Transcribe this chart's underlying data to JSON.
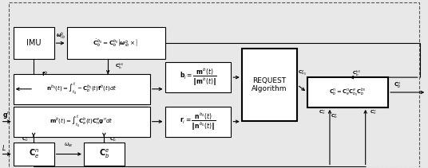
{
  "figsize": [
    5.36,
    2.11
  ],
  "dpi": 100,
  "bg_color": "#e8e8e8",
  "notes": "All coordinates in axes fraction 0-1. Blocks: [x_left, y_bottom, width, height]",
  "blocks": {
    "IMU": [
      0.03,
      0.65,
      0.095,
      0.19
    ],
    "dotCb": [
      0.155,
      0.65,
      0.23,
      0.19
    ],
    "nbt": [
      0.03,
      0.38,
      0.32,
      0.18
    ],
    "bi": [
      0.385,
      0.45,
      0.155,
      0.18
    ],
    "REQUEST": [
      0.565,
      0.28,
      0.13,
      0.43
    ],
    "CbFinal": [
      0.718,
      0.36,
      0.19,
      0.18
    ],
    "mb": [
      0.03,
      0.185,
      0.32,
      0.18
    ],
    "ri": [
      0.385,
      0.185,
      0.155,
      0.18
    ],
    "Can": [
      0.03,
      0.01,
      0.095,
      0.14
    ],
    "Cbe": [
      0.195,
      0.01,
      0.095,
      0.14
    ]
  },
  "labels": {
    "IMU": "IMU",
    "dotCb": "$\\dot{\\mathbf{C}}_b^{b_0}=\\mathbf{C}_b^{b_0}\\left[\\boldsymbol{\\omega}_{ib}^b\\times\\right]$",
    "nbt": "$\\mathbf{n}^{b_0}(t)=\\int_{t_0}^{t}-\\mathbf{C}_b^{b_0}(t)\\mathbf{f}^b(t)dt$",
    "bi": "$\\mathbf{b}_i=\\dfrac{\\mathbf{m}^b(t)}{\\|\\mathbf{m}^b(t)\\|}$",
    "REQUEST": "REQUEST\nAlgorithm",
    "CbFinal": "$\\mathbf{C}_b^n=\\mathbf{C}_e^n\\mathbf{C}_{b_0}^e\\mathbf{C}_b^{b_0}$",
    "mb": "$\\mathbf{m}^b(t)=\\int_{t_0}^{t}\\mathbf{C}_e^b(t)\\mathbf{C}_n^e\\mathbf{g}^n dt$",
    "ri": "$\\mathbf{r}_i=\\dfrac{\\mathbf{n}^{b_0}(t)}{\\|\\mathbf{n}^{b_0}(t)\\|}$",
    "Can": "$\\mathbf{C}_e^n$",
    "Cbe": "$\\mathbf{C}_b^e$"
  },
  "label_fs": {
    "IMU": 7.0,
    "dotCb": 5.2,
    "nbt": 5.0,
    "bi": 5.5,
    "REQUEST": 6.5,
    "CbFinal": 4.8,
    "mb": 5.0,
    "ri": 5.5,
    "Can": 7.0,
    "Cbe": 7.0
  },
  "lw_thin": 0.8,
  "lw_thick": 1.5,
  "arrowsize": 6
}
